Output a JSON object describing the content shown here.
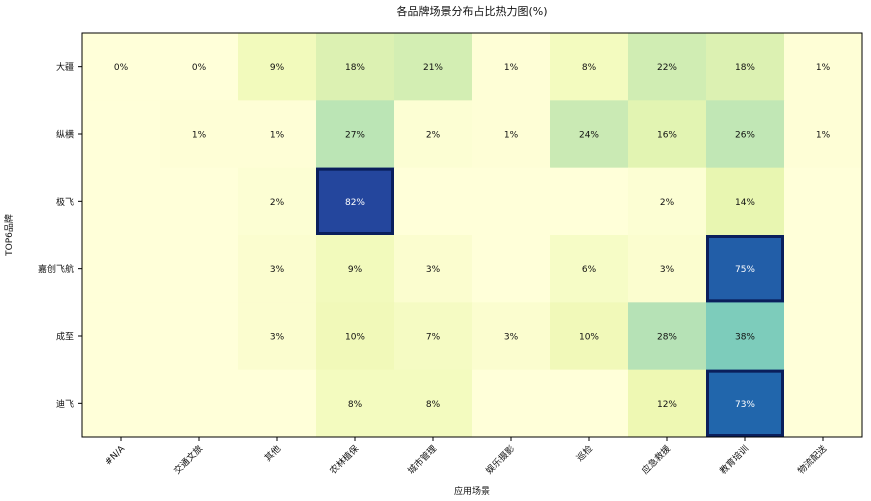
{
  "chart_data": {
    "type": "heatmap",
    "title": "各品牌场景分布占比热力图(%)",
    "xlabel": "应用场景",
    "ylabel": "TOP6品牌",
    "x_categories": [
      "#N/A",
      "交通文旅",
      "其他",
      "农林植保",
      "城市管理",
      "娱乐摄影",
      "巡检",
      "应急救援",
      "教育培训",
      "物流配送"
    ],
    "y_categories": [
      "大疆",
      "纵横",
      "极飞",
      "嘉创飞航",
      "成至",
      "迪飞"
    ],
    "values": [
      [
        0,
        0,
        9,
        18,
        21,
        1,
        8,
        22,
        18,
        1
      ],
      [
        null,
        1,
        1,
        27,
        2,
        1,
        24,
        16,
        26,
        1
      ],
      [
        null,
        null,
        2,
        82,
        null,
        null,
        null,
        2,
        14,
        null
      ],
      [
        null,
        null,
        3,
        9,
        3,
        null,
        6,
        3,
        75,
        null
      ],
      [
        null,
        null,
        3,
        10,
        7,
        3,
        10,
        28,
        38,
        null
      ],
      [
        null,
        null,
        null,
        8,
        8,
        null,
        null,
        12,
        73,
        null
      ]
    ],
    "value_suffix": "%",
    "colormap": "YlGnBu",
    "color_range": [
      0,
      100
    ],
    "highlighted_cells": [
      [
        2,
        3
      ],
      [
        3,
        8
      ],
      [
        5,
        8
      ]
    ],
    "highlight_color": "#0a1f5c"
  }
}
